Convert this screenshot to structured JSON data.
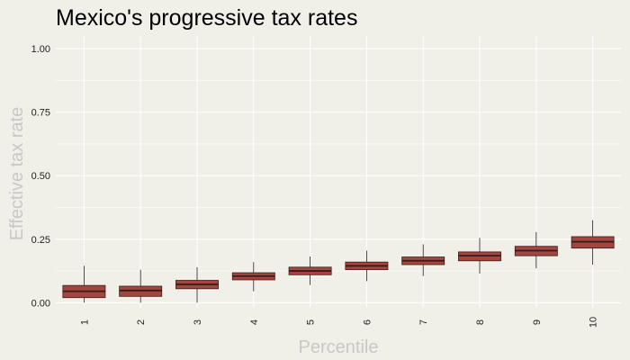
{
  "chart_data": {
    "type": "box",
    "title": "Mexico's progressive tax rates",
    "xlabel": "Percentile",
    "ylabel": "Effective tax rate",
    "categories": [
      "1",
      "2",
      "3",
      "4",
      "5",
      "6",
      "7",
      "8",
      "9",
      "10"
    ],
    "ylim": [
      -0.02,
      1.05
    ],
    "yticks": [
      "0.00",
      "0.25",
      "0.50",
      "0.75",
      "1.00"
    ],
    "ytick_values": [
      0,
      0.25,
      0.5,
      0.75,
      1.0
    ],
    "grid": true,
    "legend": "none",
    "series": [
      {
        "stats": [
          {
            "min": 0.0,
            "q1": 0.02,
            "median": 0.045,
            "q3": 0.068,
            "max": 0.145
          },
          {
            "min": 0.0,
            "q1": 0.025,
            "median": 0.048,
            "q3": 0.065,
            "max": 0.13
          },
          {
            "min": 0.0,
            "q1": 0.055,
            "median": 0.072,
            "q3": 0.088,
            "max": 0.14
          },
          {
            "min": 0.045,
            "q1": 0.09,
            "median": 0.105,
            "q3": 0.118,
            "max": 0.16
          },
          {
            "min": 0.07,
            "q1": 0.11,
            "median": 0.125,
            "q3": 0.14,
            "max": 0.182
          },
          {
            "min": 0.085,
            "q1": 0.13,
            "median": 0.145,
            "q3": 0.16,
            "max": 0.205
          },
          {
            "min": 0.105,
            "q1": 0.15,
            "median": 0.165,
            "q3": 0.18,
            "max": 0.23
          },
          {
            "min": 0.115,
            "q1": 0.165,
            "median": 0.185,
            "q3": 0.2,
            "max": 0.255
          },
          {
            "min": 0.135,
            "q1": 0.185,
            "median": 0.205,
            "q3": 0.222,
            "max": 0.278
          },
          {
            "min": 0.15,
            "q1": 0.215,
            "median": 0.24,
            "q3": 0.26,
            "max": 0.325
          }
        ]
      }
    ],
    "colors": {
      "background": "#f0efe8",
      "grid": "#ffffff",
      "box_fill": "#a1473f",
      "box_stroke": "#3a1a18",
      "whisker": "#222222",
      "axis_label": "#c8c8c8"
    }
  }
}
